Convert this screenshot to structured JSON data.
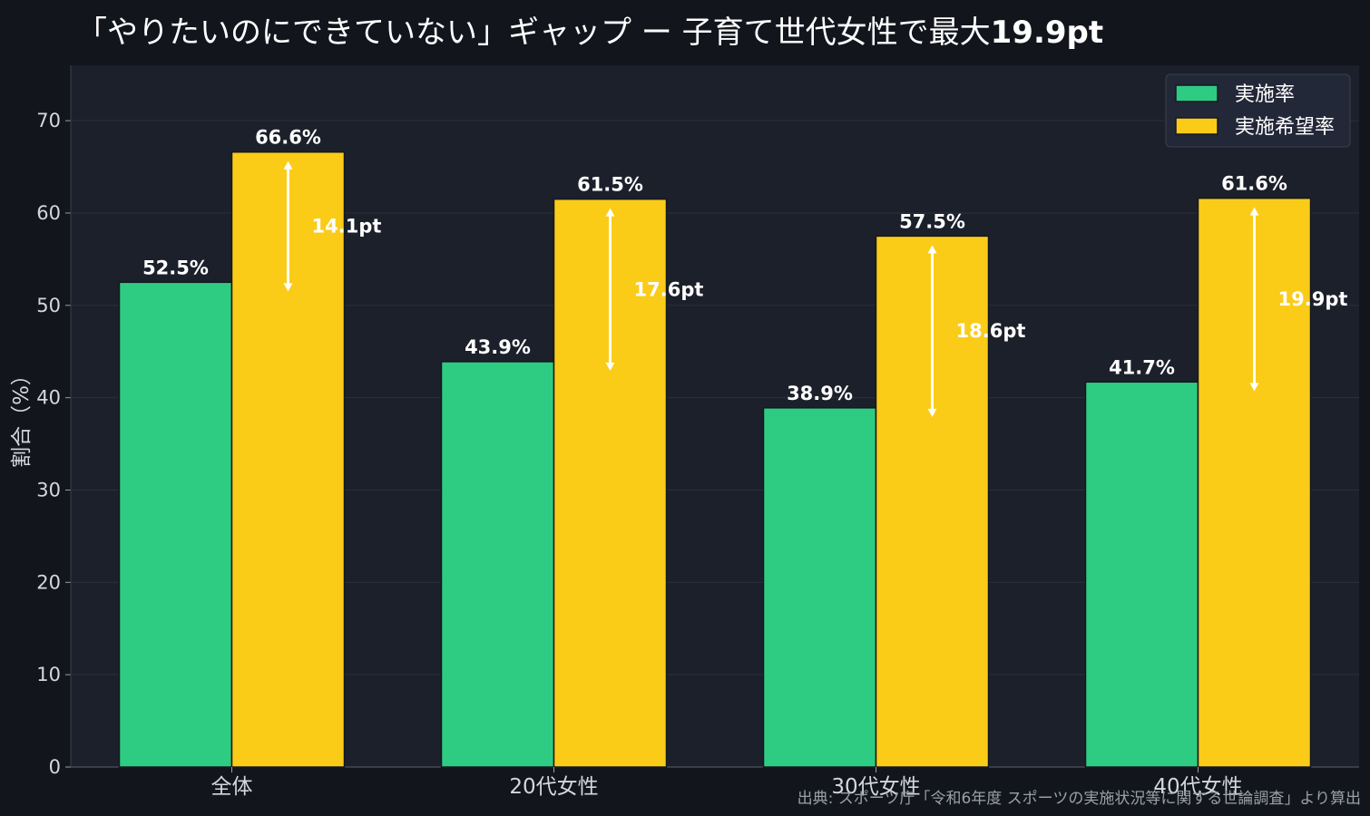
{
  "title": {
    "main": "「やりたいのにできていない」ギャップ ー 子育て世代女性で最大",
    "emphasis": "19.9pt"
  },
  "source": "出典: スポーツ庁「令和6年度 スポーツの実施状況等に関する世論調査」より算出",
  "colors": {
    "background": "#12151c",
    "plot_background": "#1c202b",
    "series_1": "#2ecc82",
    "series_2": "#facc18",
    "text": "#ffffff",
    "tick_text": "#d4d7dd"
  },
  "chart_data": {
    "type": "bar",
    "categories": [
      "全体",
      "20代女性",
      "30代女性",
      "40代女性"
    ],
    "series": [
      {
        "name": "実施率",
        "values": [
          52.5,
          43.9,
          38.9,
          41.7
        ],
        "labels": [
          "52.5%",
          "43.9%",
          "38.9%",
          "41.7%"
        ]
      },
      {
        "name": "実施希望率",
        "values": [
          66.6,
          61.5,
          57.5,
          61.6
        ],
        "labels": [
          "66.6%",
          "61.5%",
          "57.5%",
          "61.6%"
        ]
      }
    ],
    "gaps": [
      "14.1pt",
      "17.6pt",
      "18.6pt",
      "19.9pt"
    ],
    "ylabel": "割合（%）",
    "ylim": [
      0,
      76
    ],
    "yticks": [
      0,
      10,
      20,
      30,
      40,
      50,
      60,
      70
    ],
    "legend_position": "top-right",
    "grid": true
  }
}
